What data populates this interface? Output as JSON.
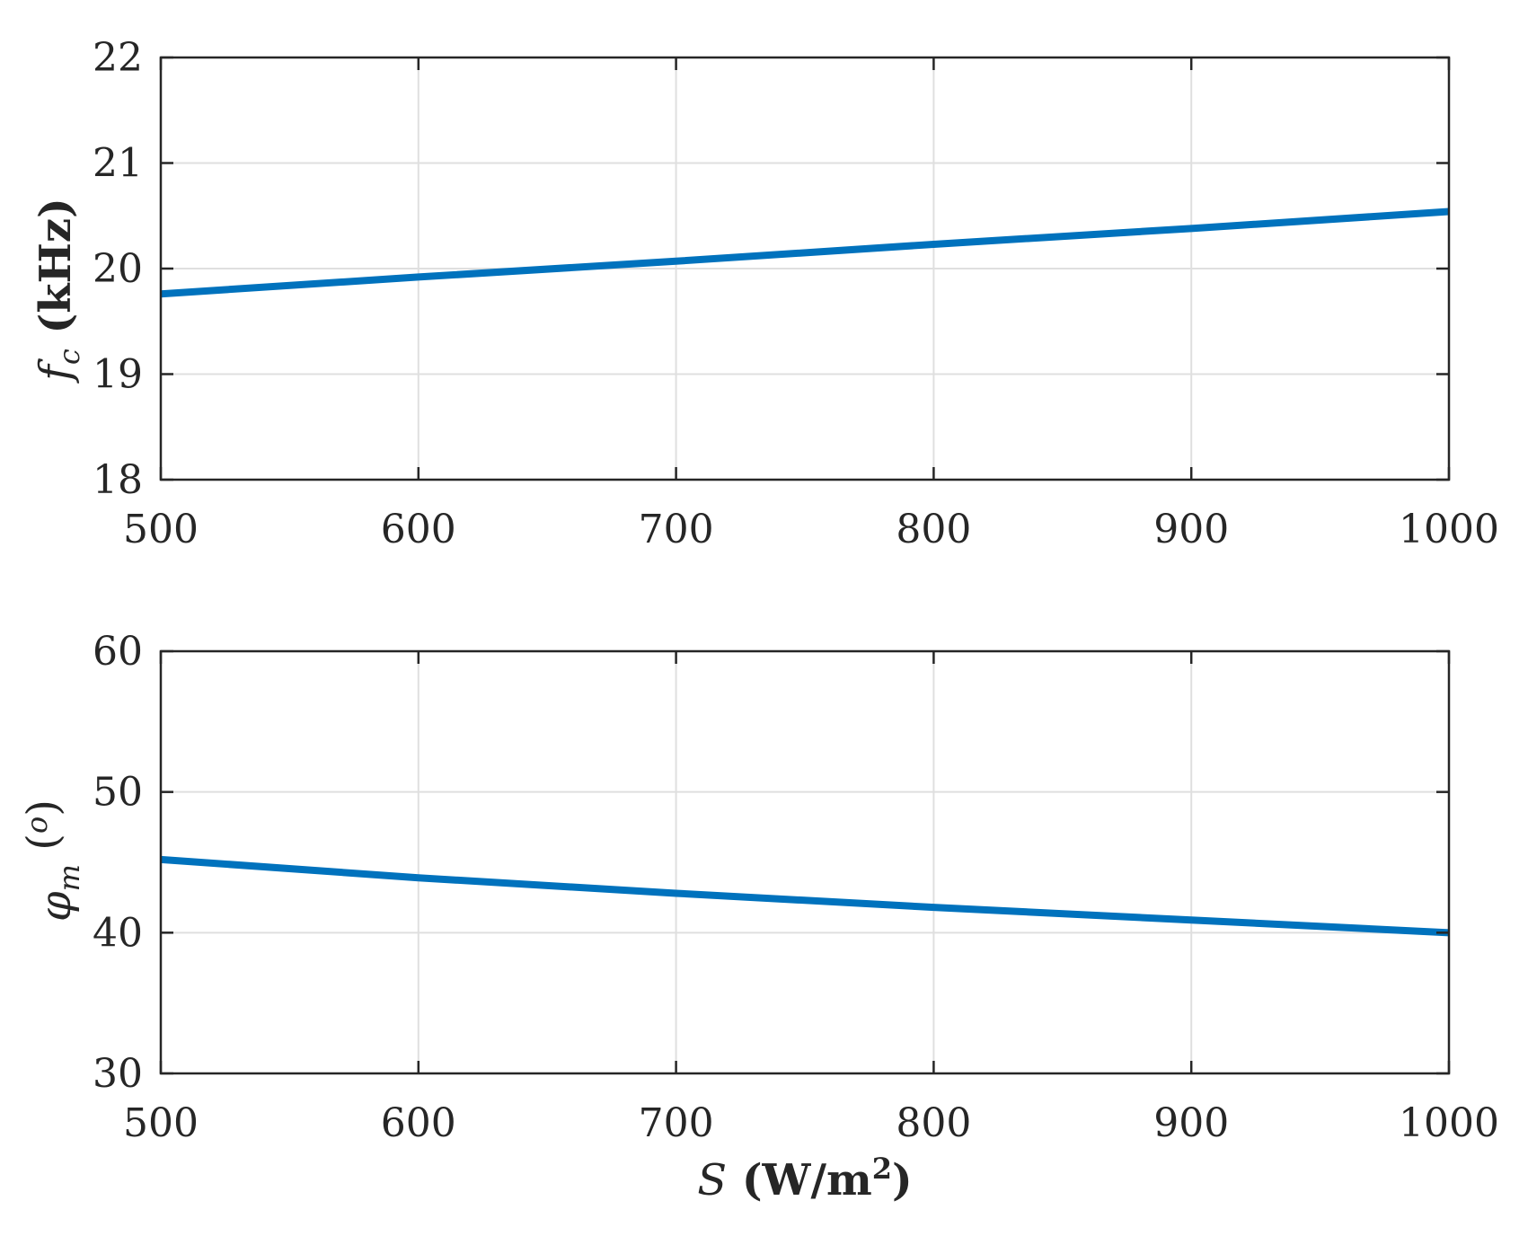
{
  "chart_data": [
    {
      "type": "line",
      "title": "",
      "xlabel": "",
      "ylabel": "f_c (kHz)",
      "xlim": [
        500,
        1000
      ],
      "ylim": [
        18,
        22
      ],
      "xticks": [
        "500",
        "600",
        "700",
        "800",
        "900",
        "1000"
      ],
      "yticks": [
        "18",
        "19",
        "20",
        "21",
        "22"
      ],
      "grid": true,
      "series": [
        {
          "x": [
            500,
            600,
            700,
            800,
            900,
            1000
          ],
          "values": [
            19.76,
            19.92,
            20.07,
            20.23,
            20.38,
            20.54
          ],
          "color": "#0072BD"
        }
      ]
    },
    {
      "type": "line",
      "title": "",
      "xlabel": "S (W/m²)",
      "ylabel": "φm (o)",
      "xlim": [
        500,
        1000
      ],
      "ylim": [
        30,
        60
      ],
      "xticks": [
        "500",
        "600",
        "700",
        "800",
        "900",
        "1000"
      ],
      "yticks": [
        "30",
        "40",
        "50",
        "60"
      ],
      "grid": true,
      "series": [
        {
          "x": [
            500,
            600,
            700,
            800,
            900,
            1000
          ],
          "values": [
            45.2,
            43.9,
            42.8,
            41.8,
            40.9,
            40.0
          ],
          "color": "#0072BD"
        }
      ]
    }
  ],
  "colors": {
    "line": "#0072BD",
    "grid": "#dfdfdf",
    "axes": "#262626"
  }
}
